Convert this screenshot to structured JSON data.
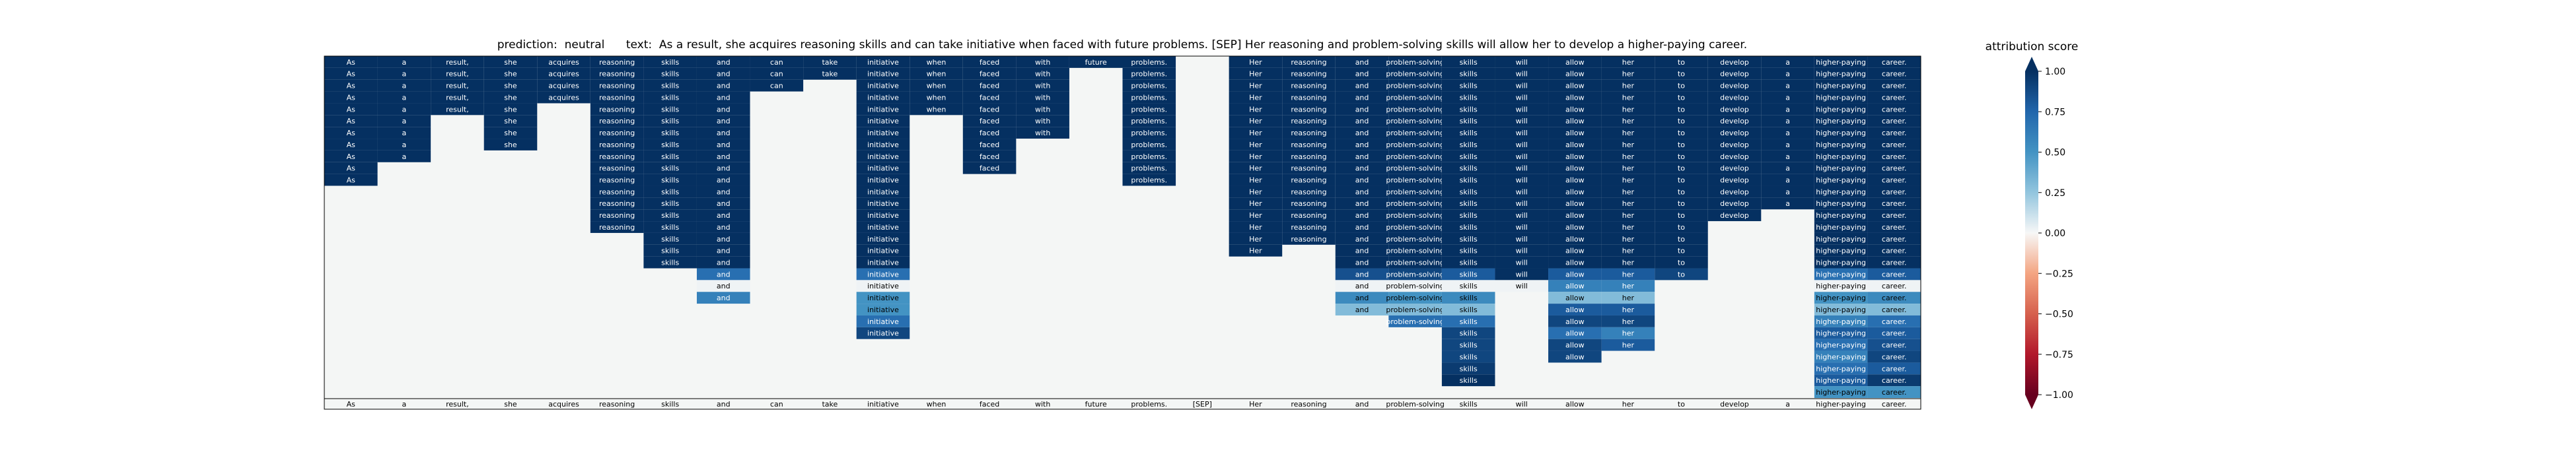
{
  "title": "prediction:  neutral      text:  As a result, she acquires reasoning skills and can take initiative when faced with future problems. [SEP] Her reasoning and problem-solving skills will allow her to develop a higher-paying career.",
  "chart_data": {
    "type": "heatmap",
    "tokens": [
      "As",
      "a",
      "result,",
      "she",
      "acquires",
      "reasoning",
      "skills",
      "and",
      "can",
      "take",
      "initiative",
      "when",
      "faced",
      "with",
      "future",
      "problems.",
      "[SEP]",
      "Her",
      "reasoning",
      "and",
      "problem-solving",
      "skills",
      "will",
      "allow",
      "her",
      "to",
      "develop",
      "a",
      "higher-paying",
      "career."
    ],
    "n_rows": 29,
    "columns": [
      {
        "token": "As",
        "cells": [
          1,
          1,
          1,
          1,
          1,
          1,
          1,
          1,
          1,
          1,
          1
        ]
      },
      {
        "token": "a",
        "cells": [
          1,
          1,
          1,
          1,
          1,
          1,
          1,
          1,
          1
        ]
      },
      {
        "token": "result,",
        "cells": [
          1,
          1,
          1,
          1,
          1
        ]
      },
      {
        "token": "she",
        "cells": [
          1,
          1,
          1,
          1,
          1,
          1,
          1,
          1
        ]
      },
      {
        "token": "acquires",
        "cells": [
          1,
          1,
          1,
          1
        ]
      },
      {
        "token": "reasoning",
        "cells": [
          1,
          1,
          1,
          1,
          1,
          1,
          1,
          1,
          1,
          1,
          1,
          1,
          1,
          1,
          1
        ]
      },
      {
        "token": "skills",
        "cells": [
          1,
          1,
          1,
          1,
          1,
          1,
          1,
          1,
          1,
          1,
          1,
          1,
          1,
          1,
          1,
          1,
          1,
          1
        ]
      },
      {
        "token": "and",
        "cells": [
          1,
          1,
          1,
          1,
          1,
          1,
          1,
          1,
          1,
          1,
          1,
          1,
          1,
          1,
          1,
          1,
          1,
          1,
          0.7,
          0.02,
          0.6
        ]
      },
      {
        "token": "can",
        "cells": [
          1,
          1,
          1
        ]
      },
      {
        "token": "take",
        "cells": [
          1,
          1
        ]
      },
      {
        "token": "initiative",
        "cells": [
          1,
          1,
          1,
          1,
          1,
          1,
          1,
          1,
          1,
          1,
          1,
          1,
          1,
          1,
          1,
          1,
          1,
          1,
          0.7,
          0.02,
          0.5,
          0.5,
          0.7,
          0.9
        ]
      },
      {
        "token": "when",
        "cells": [
          1,
          1,
          1,
          1,
          1
        ]
      },
      {
        "token": "faced",
        "cells": [
          1,
          1,
          1,
          1,
          1,
          1,
          1,
          1,
          1,
          1
        ]
      },
      {
        "token": "with",
        "cells": [
          1,
          1,
          1,
          1,
          1,
          1,
          1
        ]
      },
      {
        "token": "future",
        "cells": [
          1
        ]
      },
      {
        "token": "problems.",
        "cells": [
          1,
          1,
          1,
          1,
          1,
          1,
          1,
          1,
          1,
          1,
          1
        ]
      },
      {
        "token": "[SEP]",
        "cells": []
      },
      {
        "token": "Her",
        "cells": [
          1,
          1,
          1,
          1,
          1,
          1,
          1,
          1,
          1,
          1,
          1,
          1,
          1,
          1,
          1,
          1,
          1
        ]
      },
      {
        "token": "reasoning",
        "cells": [
          1,
          1,
          1,
          1,
          1,
          1,
          1,
          1,
          1,
          1,
          1,
          1,
          1,
          1,
          1,
          1
        ]
      },
      {
        "token": "and",
        "cells": [
          1,
          1,
          1,
          1,
          1,
          1,
          1,
          1,
          1,
          1,
          1,
          1,
          1,
          1,
          1,
          1,
          1,
          1,
          0.85,
          0.02,
          0.55,
          0.3
        ]
      },
      {
        "token": "problem-solving",
        "cells": [
          1,
          1,
          1,
          1,
          1,
          1,
          1,
          1,
          1,
          1,
          1,
          1,
          1,
          1,
          1,
          1,
          1,
          1,
          0.9,
          0.02,
          0.5,
          0.3,
          0.7
        ]
      },
      {
        "token": "skills",
        "cells": [
          1,
          1,
          1,
          1,
          1,
          1,
          1,
          1,
          1,
          1,
          1,
          1,
          1,
          1,
          1,
          1,
          1,
          1,
          0.8,
          0.02,
          0.55,
          0.3,
          0.7,
          0.9,
          0.9,
          0.9,
          0.95,
          1
        ]
      },
      {
        "token": "will",
        "cells": [
          1,
          1,
          1,
          1,
          1,
          1,
          1,
          1,
          1,
          1,
          1,
          1,
          1,
          1,
          1,
          1,
          1,
          1,
          1,
          0.02
        ]
      },
      {
        "token": "allow",
        "cells": [
          1,
          1,
          1,
          1,
          1,
          1,
          1,
          1,
          1,
          1,
          1,
          1,
          1,
          1,
          1,
          1,
          1,
          1,
          0.8,
          0.6,
          0.3,
          0.8,
          0.9,
          0.7,
          0.9,
          0.9
        ]
      },
      {
        "token": "her",
        "cells": [
          1,
          1,
          1,
          1,
          1,
          1,
          1,
          1,
          1,
          1,
          1,
          1,
          1,
          1,
          1,
          1,
          1,
          1,
          0.8,
          0.6,
          0.3,
          0.8,
          0.9,
          0.6,
          0.8
        ]
      },
      {
        "token": "to",
        "cells": [
          1,
          1,
          1,
          1,
          1,
          1,
          1,
          1,
          1,
          1,
          1,
          1,
          1,
          1,
          1,
          1,
          1,
          1,
          0.9
        ]
      },
      {
        "token": "develop",
        "cells": [
          1,
          1,
          1,
          1,
          1,
          1,
          1,
          1,
          1,
          1,
          1,
          1,
          1,
          1
        ]
      },
      {
        "token": "a",
        "cells": [
          1,
          1,
          1,
          1,
          1,
          1,
          1,
          1,
          1,
          1,
          1,
          1,
          1
        ]
      },
      {
        "token": "higher-paying",
        "cells": [
          1,
          1,
          1,
          1,
          1,
          1,
          1,
          1,
          1,
          1,
          1,
          1,
          1,
          1,
          1,
          1,
          1,
          1,
          0.7,
          0.02,
          0.5,
          0.3,
          0.6,
          0.8,
          0.7,
          0.6,
          0.7,
          0.8,
          0.5
        ]
      },
      {
        "token": "career.",
        "cells": [
          1,
          1,
          1,
          1,
          1,
          1,
          1,
          1,
          1,
          1,
          1,
          1,
          1,
          1,
          1,
          1,
          1,
          1,
          0.8,
          0.02,
          0.55,
          0.3,
          0.7,
          0.8,
          0.85,
          0.9,
          0.8,
          0.95,
          0.5
        ]
      }
    ],
    "colorbar": {
      "label": "attribution score",
      "vmin": -1.0,
      "vmax": 1.0,
      "ticks": [
        "1.00",
        "0.75",
        "0.50",
        "0.25",
        "0.00",
        "−0.25",
        "−0.50",
        "−0.75",
        "−1.00"
      ],
      "tick_values": [
        1.0,
        0.75,
        0.5,
        0.25,
        0.0,
        -0.25,
        -0.5,
        -0.75,
        -1.0
      ],
      "colormap": "RdBu",
      "extend": "both"
    }
  },
  "colors": {
    "background_cell": "#f4f6f5",
    "frame": "#000000"
  }
}
